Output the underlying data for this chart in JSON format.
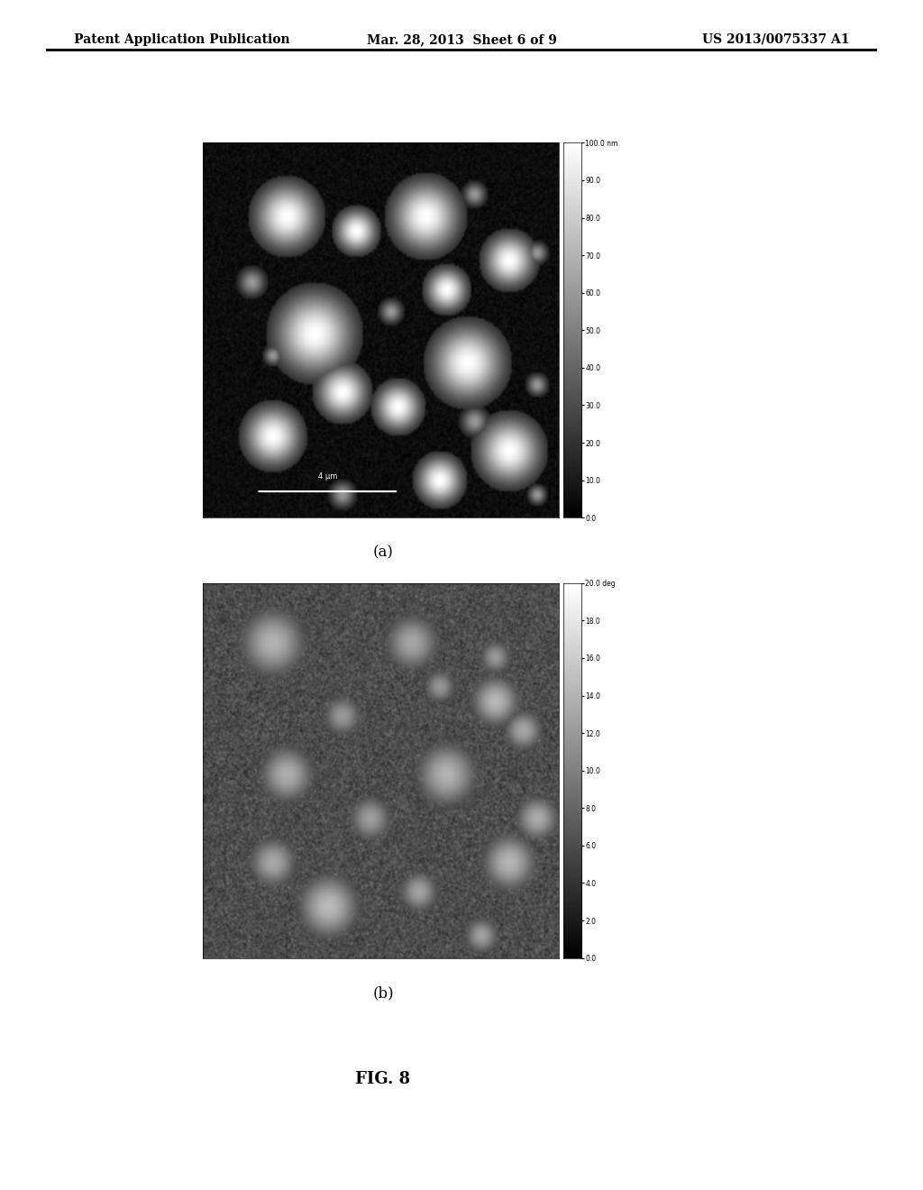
{
  "header_left": "Patent Application Publication",
  "header_center": "Mar. 28, 2013  Sheet 6 of 9",
  "header_right": "US 2013/0075337 A1",
  "label_a": "(a)",
  "label_b": "(b)",
  "fig_label": "FIG. 8",
  "colorbar_a_top": "100.0 nm",
  "colorbar_a_labels": [
    "100.0 nm",
    "90.0",
    "80.0",
    "70.0",
    "60.0",
    "50.0",
    "40.0",
    "30.0",
    "20.0",
    "10.0",
    "0.0"
  ],
  "colorbar_a_vals": [
    100,
    90,
    80,
    70,
    60,
    50,
    40,
    30,
    20,
    10,
    0
  ],
  "colorbar_b_top": "20.0 deg",
  "colorbar_b_labels": [
    "20.0 deg",
    "18.0",
    "16.0",
    "14.0",
    "12.0",
    "10.0",
    "8.0",
    "6.0",
    "4.0",
    "2.0",
    "0.0"
  ],
  "colorbar_b_vals": [
    20,
    18,
    16,
    14,
    12,
    10,
    8,
    6,
    4,
    2,
    0
  ],
  "background_color": "#ffffff",
  "header_font_size": 10,
  "label_font_size": 12,
  "fig_label_font_size": 13
}
